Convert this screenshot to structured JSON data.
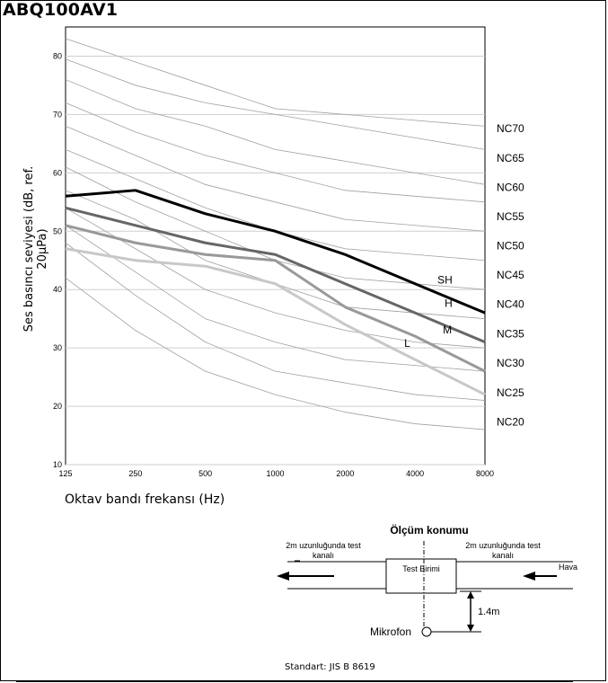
{
  "title": "ABQ100AV1",
  "chart_data": {
    "type": "line",
    "xlabel": "Oktav bandı frekansı (Hz)",
    "ylabel": "Ses basıncı seviyesi (dB, ref. 20µPa)",
    "x_categories": [
      "125",
      "250",
      "500",
      "1000",
      "2000",
      "4000",
      "8000"
    ],
    "y_ticks": [
      10,
      20,
      30,
      40,
      50,
      60,
      70,
      80
    ],
    "ylim": [
      10,
      85
    ],
    "grid": "horizontal",
    "series": [
      {
        "name": "SH",
        "color": "#000000",
        "width": 3,
        "values": [
          56,
          57,
          53,
          50,
          46,
          41,
          36
        ]
      },
      {
        "name": "H",
        "color": "#666666",
        "width": 3,
        "values": [
          54,
          51,
          48,
          46,
          41,
          36,
          31
        ]
      },
      {
        "name": "M",
        "color": "#999999",
        "width": 3,
        "values": [
          51,
          48,
          46,
          45,
          37,
          32,
          26
        ]
      },
      {
        "name": "L",
        "color": "#c8c8c8",
        "width": 3,
        "values": [
          47,
          45,
          44,
          41,
          34,
          28,
          22
        ]
      }
    ],
    "nc_curves": [
      {
        "name": "NC70",
        "values": [
          83,
          79,
          75,
          71,
          70,
          69,
          68
        ]
      },
      {
        "name": "NC65",
        "values": [
          79.5,
          75,
          72,
          70,
          68,
          66,
          64
        ]
      },
      {
        "name": "NC60",
        "values": [
          76,
          71,
          68,
          64,
          62,
          60,
          58
        ]
      },
      {
        "name": "NC55",
        "values": [
          72,
          67,
          63,
          60,
          57,
          56,
          55
        ]
      },
      {
        "name": "NC50",
        "values": [
          68,
          63,
          58,
          55,
          52,
          51,
          50
        ]
      },
      {
        "name": "NC45",
        "values": [
          64,
          59,
          54,
          50,
          47,
          46,
          45
        ]
      },
      {
        "name": "NC40",
        "values": [
          61,
          55,
          50,
          45,
          42,
          41,
          40
        ]
      },
      {
        "name": "NC35",
        "values": [
          57,
          52,
          45,
          41,
          37,
          36,
          35
        ]
      },
      {
        "name": "NC30",
        "values": [
          54,
          47,
          40,
          36,
          33,
          31,
          30
        ]
      },
      {
        "name": "NC25",
        "values": [
          51,
          43,
          35,
          31,
          28,
          27,
          26
        ]
      },
      {
        "name": "NC20",
        "values": [
          48,
          39,
          31,
          26,
          24,
          22,
          21
        ]
      },
      {
        "name": "",
        "values": [
          42,
          33,
          26,
          22,
          19,
          17,
          16
        ]
      }
    ],
    "nc_labels": [
      {
        "text": "NC70",
        "y": 67.6
      },
      {
        "text": "NC65",
        "y": 62.5
      },
      {
        "text": "NC60",
        "y": 57.5
      },
      {
        "text": "NC55",
        "y": 52.5
      },
      {
        "text": "NC50",
        "y": 47.5
      },
      {
        "text": "NC45",
        "y": 42.5
      },
      {
        "text": "NC40",
        "y": 37.5
      },
      {
        "text": "NC35",
        "y": 32.4
      },
      {
        "text": "NC30",
        "y": 27.4
      },
      {
        "text": "NC25",
        "y": 22.3
      },
      {
        "text": "NC20",
        "y": 17.3
      }
    ]
  },
  "diagram": {
    "title": "Ölçüm konumu",
    "left_label_1": "2m uzunluğunda test",
    "left_label_2": "kanalı",
    "right_label_1": "2m uzunluğunda test",
    "right_label_2": "kanalı",
    "unit_label": "Test Birimi",
    "air_label": "Hava",
    "distance_label": "1.4m",
    "mic_label": "Mikrofon"
  },
  "standard": "Standart: JIS B 8619"
}
